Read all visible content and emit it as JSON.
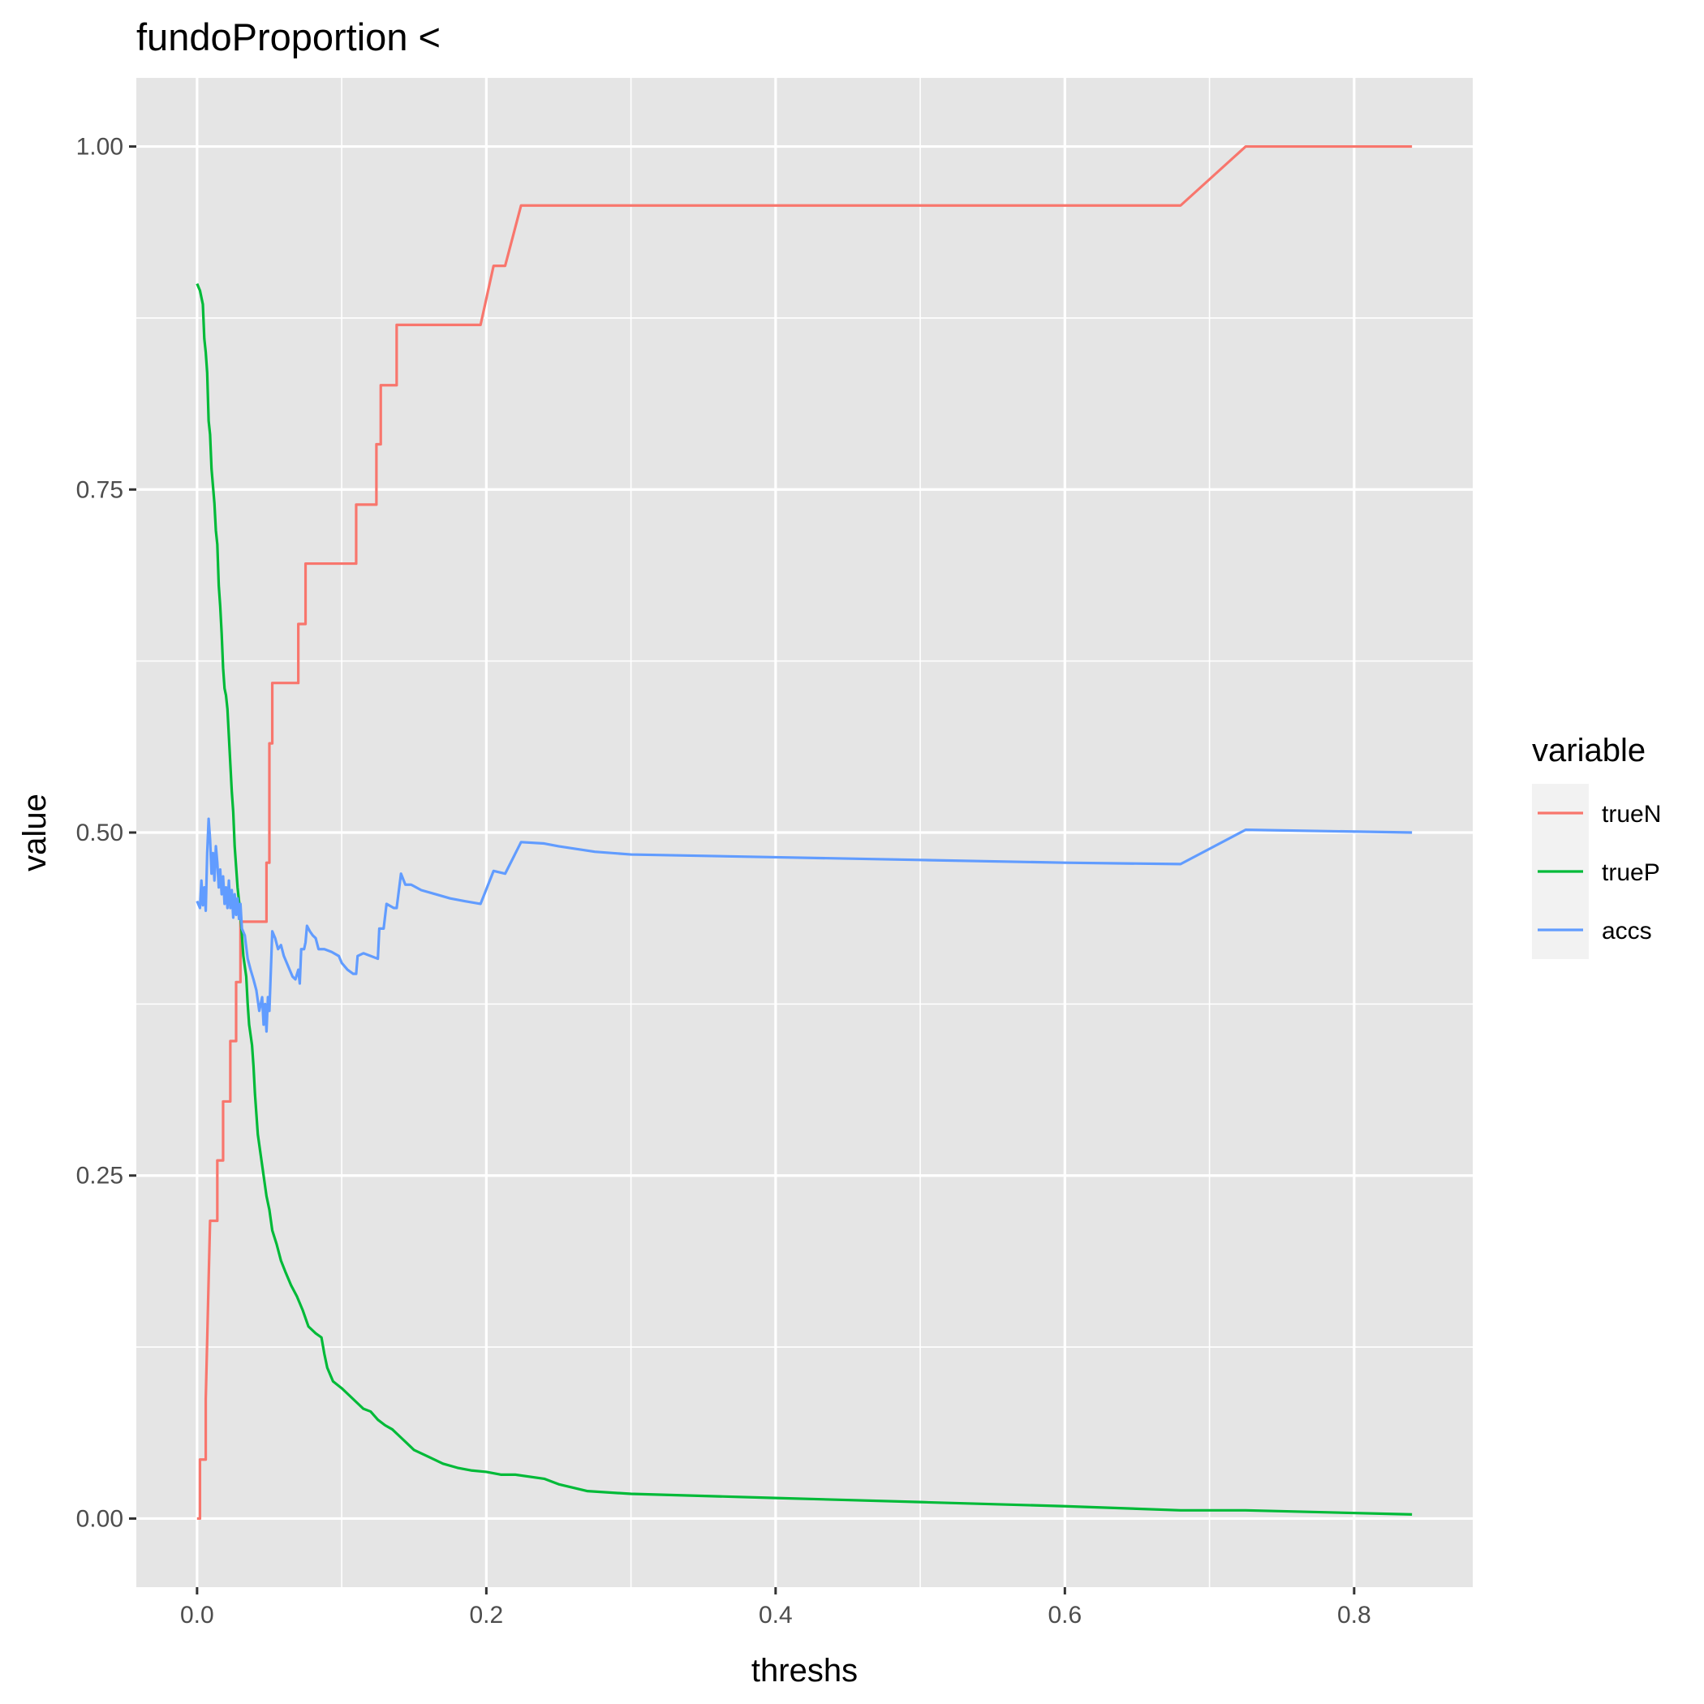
{
  "chart_data": {
    "type": "line",
    "title": "fundoProportion <",
    "xlabel": "threshs",
    "ylabel": "value",
    "xlim": [
      -0.042,
      0.882
    ],
    "ylim": [
      -0.05,
      1.05
    ],
    "x_ticks": [
      0.0,
      0.2,
      0.4,
      0.6,
      0.8
    ],
    "x_tick_labels": [
      "0.0",
      "0.2",
      "0.4",
      "0.6",
      "0.8"
    ],
    "y_ticks": [
      0.0,
      0.25,
      0.5,
      0.75,
      1.0
    ],
    "y_tick_labels": [
      "0.00",
      "0.25",
      "0.50",
      "0.75",
      "1.00"
    ],
    "grid": true,
    "legend": {
      "title": "variable",
      "position": "right"
    },
    "colors": {
      "panel": "#e5e5e5",
      "grid": "#ffffff",
      "tick": "#333333",
      "legend_key": "#f2f2f2"
    },
    "series": [
      {
        "name": "trueN",
        "color": "#F8766D",
        "step": true,
        "points": [
          [
            0.0,
            0.0
          ],
          [
            0.002,
            0.0
          ],
          [
            0.002,
            0.043
          ],
          [
            0.006,
            0.043
          ],
          [
            0.006,
            0.087
          ],
          [
            0.007,
            0.13
          ],
          [
            0.008,
            0.174
          ],
          [
            0.009,
            0.217
          ],
          [
            0.014,
            0.217
          ],
          [
            0.014,
            0.261
          ],
          [
            0.018,
            0.261
          ],
          [
            0.018,
            0.304
          ],
          [
            0.023,
            0.304
          ],
          [
            0.023,
            0.348
          ],
          [
            0.027,
            0.348
          ],
          [
            0.027,
            0.391
          ],
          [
            0.03,
            0.391
          ],
          [
            0.03,
            0.435
          ],
          [
            0.048,
            0.435
          ],
          [
            0.048,
            0.478
          ],
          [
            0.05,
            0.478
          ],
          [
            0.05,
            0.565
          ],
          [
            0.052,
            0.565
          ],
          [
            0.052,
            0.609
          ],
          [
            0.07,
            0.609
          ],
          [
            0.07,
            0.652
          ],
          [
            0.075,
            0.652
          ],
          [
            0.075,
            0.696
          ],
          [
            0.11,
            0.696
          ],
          [
            0.11,
            0.739
          ],
          [
            0.124,
            0.739
          ],
          [
            0.124,
            0.783
          ],
          [
            0.127,
            0.783
          ],
          [
            0.127,
            0.826
          ],
          [
            0.138,
            0.826
          ],
          [
            0.138,
            0.87
          ],
          [
            0.196,
            0.87
          ],
          [
            0.205,
            0.913
          ],
          [
            0.213,
            0.913
          ],
          [
            0.224,
            0.957
          ],
          [
            0.68,
            0.957
          ],
          [
            0.725,
            1.0
          ],
          [
            0.84,
            1.0
          ]
        ]
      },
      {
        "name": "trueP",
        "color": "#00BA38",
        "step": false,
        "points": [
          [
            0.0,
            0.9
          ],
          [
            0.002,
            0.895
          ],
          [
            0.004,
            0.885
          ],
          [
            0.005,
            0.86
          ],
          [
            0.006,
            0.85
          ],
          [
            0.007,
            0.835
          ],
          [
            0.008,
            0.8
          ],
          [
            0.009,
            0.79
          ],
          [
            0.01,
            0.765
          ],
          [
            0.012,
            0.74
          ],
          [
            0.013,
            0.72
          ],
          [
            0.014,
            0.71
          ],
          [
            0.015,
            0.68
          ],
          [
            0.016,
            0.665
          ],
          [
            0.017,
            0.645
          ],
          [
            0.018,
            0.62
          ],
          [
            0.019,
            0.605
          ],
          [
            0.02,
            0.6
          ],
          [
            0.021,
            0.59
          ],
          [
            0.022,
            0.57
          ],
          [
            0.023,
            0.55
          ],
          [
            0.024,
            0.53
          ],
          [
            0.025,
            0.515
          ],
          [
            0.026,
            0.49
          ],
          [
            0.027,
            0.475
          ],
          [
            0.028,
            0.46
          ],
          [
            0.029,
            0.45
          ],
          [
            0.03,
            0.44
          ],
          [
            0.031,
            0.425
          ],
          [
            0.032,
            0.41
          ],
          [
            0.034,
            0.395
          ],
          [
            0.035,
            0.375
          ],
          [
            0.036,
            0.36
          ],
          [
            0.038,
            0.345
          ],
          [
            0.039,
            0.33
          ],
          [
            0.04,
            0.31
          ],
          [
            0.041,
            0.295
          ],
          [
            0.042,
            0.28
          ],
          [
            0.044,
            0.265
          ],
          [
            0.046,
            0.25
          ],
          [
            0.048,
            0.235
          ],
          [
            0.05,
            0.225
          ],
          [
            0.052,
            0.21
          ],
          [
            0.055,
            0.2
          ],
          [
            0.058,
            0.188
          ],
          [
            0.061,
            0.18
          ],
          [
            0.065,
            0.17
          ],
          [
            0.069,
            0.162
          ],
          [
            0.073,
            0.152
          ],
          [
            0.077,
            0.14
          ],
          [
            0.082,
            0.135
          ],
          [
            0.086,
            0.132
          ],
          [
            0.088,
            0.12
          ],
          [
            0.09,
            0.11
          ],
          [
            0.094,
            0.1
          ],
          [
            0.1,
            0.095
          ],
          [
            0.105,
            0.09
          ],
          [
            0.11,
            0.085
          ],
          [
            0.115,
            0.08
          ],
          [
            0.12,
            0.078
          ],
          [
            0.125,
            0.072
          ],
          [
            0.13,
            0.068
          ],
          [
            0.135,
            0.065
          ],
          [
            0.14,
            0.06
          ],
          [
            0.145,
            0.055
          ],
          [
            0.15,
            0.05
          ],
          [
            0.16,
            0.045
          ],
          [
            0.17,
            0.04
          ],
          [
            0.18,
            0.037
          ],
          [
            0.19,
            0.035
          ],
          [
            0.2,
            0.034
          ],
          [
            0.21,
            0.032
          ],
          [
            0.22,
            0.032
          ],
          [
            0.24,
            0.029
          ],
          [
            0.25,
            0.025
          ],
          [
            0.27,
            0.02
          ],
          [
            0.3,
            0.018
          ],
          [
            0.4,
            0.015
          ],
          [
            0.5,
            0.012
          ],
          [
            0.6,
            0.009
          ],
          [
            0.68,
            0.006
          ],
          [
            0.725,
            0.006
          ],
          [
            0.84,
            0.003
          ]
        ]
      },
      {
        "name": "accs",
        "color": "#619CFF",
        "step": false,
        "points": [
          [
            0.0,
            0.45
          ],
          [
            0.002,
            0.445
          ],
          [
            0.003,
            0.465
          ],
          [
            0.004,
            0.447
          ],
          [
            0.005,
            0.46
          ],
          [
            0.006,
            0.443
          ],
          [
            0.007,
            0.485
          ],
          [
            0.008,
            0.51
          ],
          [
            0.009,
            0.495
          ],
          [
            0.01,
            0.47
          ],
          [
            0.011,
            0.485
          ],
          [
            0.012,
            0.465
          ],
          [
            0.013,
            0.49
          ],
          [
            0.014,
            0.478
          ],
          [
            0.015,
            0.46
          ],
          [
            0.016,
            0.473
          ],
          [
            0.017,
            0.455
          ],
          [
            0.018,
            0.468
          ],
          [
            0.019,
            0.448
          ],
          [
            0.02,
            0.46
          ],
          [
            0.021,
            0.445
          ],
          [
            0.022,
            0.465
          ],
          [
            0.023,
            0.445
          ],
          [
            0.024,
            0.458
          ],
          [
            0.025,
            0.438
          ],
          [
            0.026,
            0.455
          ],
          [
            0.027,
            0.44
          ],
          [
            0.028,
            0.452
          ],
          [
            0.029,
            0.437
          ],
          [
            0.03,
            0.448
          ],
          [
            0.031,
            0.43
          ],
          [
            0.033,
            0.425
          ],
          [
            0.035,
            0.408
          ],
          [
            0.037,
            0.4
          ],
          [
            0.039,
            0.393
          ],
          [
            0.041,
            0.385
          ],
          [
            0.043,
            0.37
          ],
          [
            0.045,
            0.38
          ],
          [
            0.046,
            0.36
          ],
          [
            0.047,
            0.375
          ],
          [
            0.048,
            0.355
          ],
          [
            0.049,
            0.38
          ],
          [
            0.05,
            0.37
          ],
          [
            0.052,
            0.428
          ],
          [
            0.054,
            0.423
          ],
          [
            0.056,
            0.415
          ],
          [
            0.058,
            0.418
          ],
          [
            0.06,
            0.41
          ],
          [
            0.062,
            0.405
          ],
          [
            0.064,
            0.4
          ],
          [
            0.066,
            0.395
          ],
          [
            0.068,
            0.393
          ],
          [
            0.07,
            0.4
          ],
          [
            0.071,
            0.39
          ],
          [
            0.072,
            0.415
          ],
          [
            0.074,
            0.415
          ],
          [
            0.075,
            0.42
          ],
          [
            0.076,
            0.432
          ],
          [
            0.078,
            0.428
          ],
          [
            0.08,
            0.425
          ],
          [
            0.082,
            0.423
          ],
          [
            0.084,
            0.415
          ],
          [
            0.088,
            0.415
          ],
          [
            0.093,
            0.413
          ],
          [
            0.098,
            0.41
          ],
          [
            0.1,
            0.405
          ],
          [
            0.104,
            0.4
          ],
          [
            0.108,
            0.397
          ],
          [
            0.11,
            0.397
          ],
          [
            0.111,
            0.41
          ],
          [
            0.115,
            0.412
          ],
          [
            0.12,
            0.41
          ],
          [
            0.125,
            0.408
          ],
          [
            0.126,
            0.43
          ],
          [
            0.129,
            0.43
          ],
          [
            0.131,
            0.448
          ],
          [
            0.136,
            0.445
          ],
          [
            0.138,
            0.445
          ],
          [
            0.141,
            0.47
          ],
          [
            0.144,
            0.462
          ],
          [
            0.148,
            0.462
          ],
          [
            0.155,
            0.458
          ],
          [
            0.165,
            0.455
          ],
          [
            0.175,
            0.452
          ],
          [
            0.185,
            0.45
          ],
          [
            0.196,
            0.448
          ],
          [
            0.205,
            0.472
          ],
          [
            0.213,
            0.47
          ],
          [
            0.224,
            0.493
          ],
          [
            0.24,
            0.492
          ],
          [
            0.25,
            0.49
          ],
          [
            0.275,
            0.486
          ],
          [
            0.3,
            0.484
          ],
          [
            0.4,
            0.482
          ],
          [
            0.5,
            0.48
          ],
          [
            0.6,
            0.478
          ],
          [
            0.68,
            0.477
          ],
          [
            0.725,
            0.502
          ],
          [
            0.84,
            0.5
          ]
        ]
      }
    ]
  }
}
